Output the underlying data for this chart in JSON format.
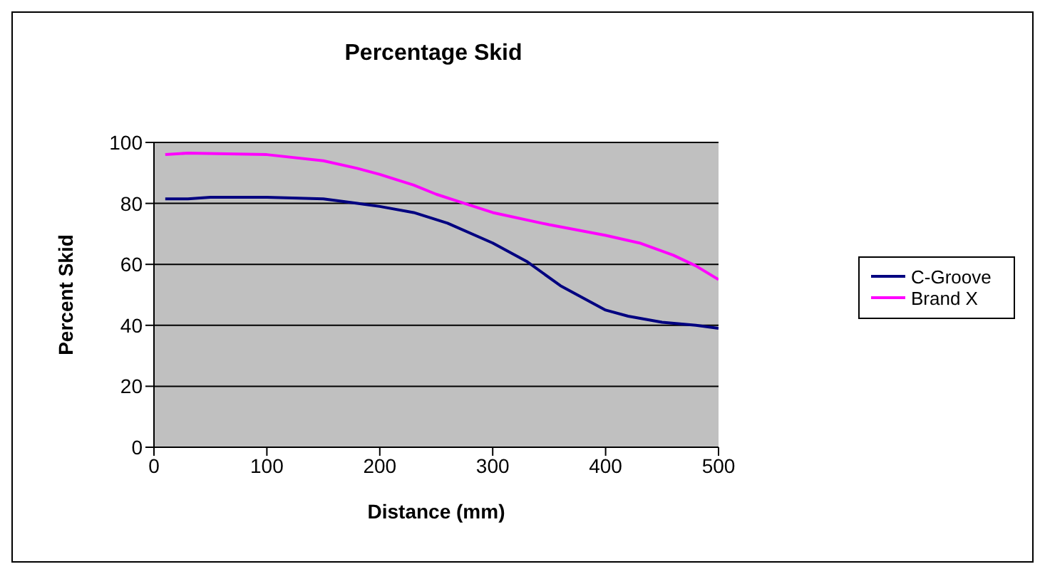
{
  "chart_data": {
    "type": "line",
    "title": "Percentage Skid",
    "xlabel": "Distance (mm)",
    "ylabel": "Percent Skid",
    "xlim": [
      0,
      500
    ],
    "xticks": [
      0,
      100,
      200,
      300,
      400,
      500
    ],
    "ylim": [
      0,
      100
    ],
    "yticks": [
      0,
      20,
      40,
      60,
      80,
      100
    ],
    "grid": "y",
    "legend": "right",
    "marker": "none",
    "line_style": "solid",
    "series": [
      {
        "name": "C-Groove",
        "color": "#000080",
        "x": [
          10,
          30,
          50,
          100,
          150,
          180,
          200,
          230,
          260,
          300,
          330,
          360,
          400,
          420,
          450,
          480,
          500
        ],
        "values": [
          81.5,
          81.5,
          82,
          82,
          81.5,
          80,
          79,
          77,
          73.5,
          67,
          61,
          53,
          45,
          43,
          41,
          40,
          39
        ]
      },
      {
        "name": "Brand X",
        "color": "#ff00ff",
        "x": [
          10,
          30,
          100,
          150,
          180,
          200,
          230,
          250,
          275,
          300,
          350,
          400,
          430,
          460,
          480,
          500
        ],
        "values": [
          96,
          96.5,
          96,
          94,
          91.5,
          89.5,
          86,
          83,
          80,
          77,
          73,
          69.5,
          67,
          63,
          59.5,
          55
        ]
      }
    ]
  }
}
